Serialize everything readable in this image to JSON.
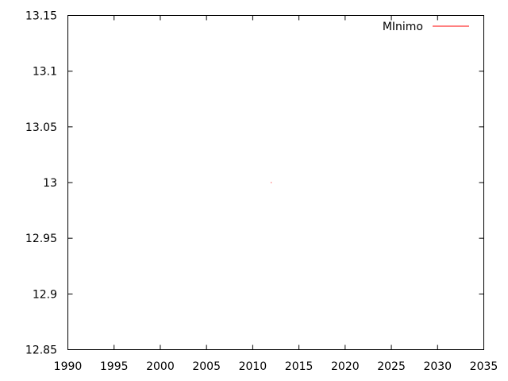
{
  "chart_data": {
    "type": "line",
    "title": "",
    "xlabel": "",
    "ylabel": "",
    "xlim": [
      1990,
      2035
    ],
    "ylim": [
      12.85,
      13.15
    ],
    "x_ticks": [
      "1990",
      "1995",
      "2000",
      "2005",
      "2010",
      "2015",
      "2020",
      "2025",
      "2030",
      "2035"
    ],
    "y_ticks": [
      "12.85",
      "12.9",
      "12.95",
      "13",
      "13.05",
      "13.1",
      "13.15"
    ],
    "grid": false,
    "legend_position": "top-right",
    "series": [
      {
        "name": "MInimo",
        "color": "#ff0000",
        "points": [
          {
            "x": 2012,
            "y": 13.0
          }
        ]
      }
    ]
  }
}
